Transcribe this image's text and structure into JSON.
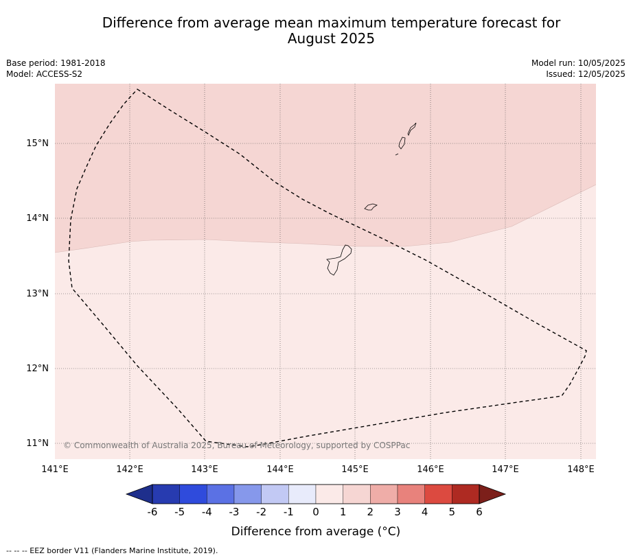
{
  "title_line1": "Difference from average mean maximum temperature forecast for",
  "title_line2": "August 2025",
  "base_period": "Base period: 1981-2018",
  "model": "Model: ACCESS-S2",
  "model_run": "Model run: 10/05/2025",
  "issued": "Issued: 12/05/2025",
  "longitude_ticks": [
    "141°E",
    "142°E",
    "143°E",
    "144°E",
    "145°E",
    "146°E",
    "147°E",
    "148°E"
  ],
  "latitude_ticks": [
    "15°N",
    "14°N",
    "13°N",
    "12°N",
    "11°N"
  ],
  "credit": "© Commonwealth of Australia 2025, Bureau of Meteorology, supported by COSPPac",
  "colorbar": {
    "label": "Difference from average (°C)",
    "ticks": [
      "-6",
      "-5",
      "-4",
      "-3",
      "-2",
      "-1",
      "0",
      "1",
      "2",
      "3",
      "4",
      "5",
      "6"
    ],
    "colors": [
      "#273bb0",
      "#2f4bdc",
      "#5b71e4",
      "#8698eb",
      "#c2c9f4",
      "#e8ebfb",
      "#fbeae8",
      "#f6d6d3",
      "#efada8",
      "#e8827c",
      "#dc4a40",
      "#ae2a22"
    ],
    "under_color": "#1e2f8c",
    "over_color": "#7c1f1a"
  },
  "map_regions": [
    {
      "name": "1 to 2 °C above average",
      "color": "#f5d6d3"
    },
    {
      "name": "0 to 1 °C above average",
      "color": "#fbeae8"
    }
  ],
  "footer": "--  --  -- EEZ border V11 (Flanders Marine Institute, 2019)."
}
